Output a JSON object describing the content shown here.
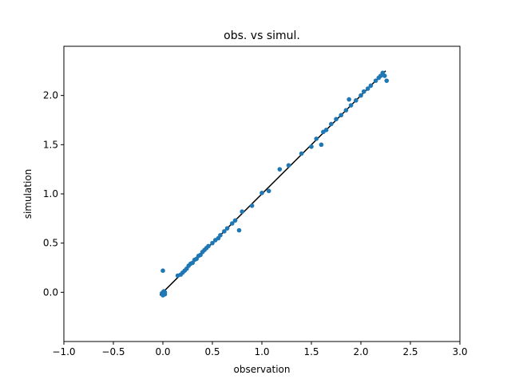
{
  "chart_data": {
    "type": "scatter",
    "title": "obs. vs simul.",
    "xlabel": "observation",
    "ylabel": "simulation",
    "xlim": [
      -1.0,
      3.0
    ],
    "ylim": [
      -0.5,
      2.5
    ],
    "xticks": [
      -1.0,
      -0.5,
      0.0,
      0.5,
      1.0,
      1.5,
      2.0,
      2.5,
      3.0
    ],
    "xtick_labels": [
      "−1.0",
      "−0.5",
      "0.0",
      "0.5",
      "1.0",
      "1.5",
      "2.0",
      "2.5",
      "3.0"
    ],
    "yticks": [
      0.0,
      0.5,
      1.0,
      1.5,
      2.0
    ],
    "ytick_labels": [
      "0.0",
      "0.5",
      "1.0",
      "1.5",
      "2.0"
    ],
    "grid": false,
    "series": [
      {
        "kind": "scatter",
        "color": "#1f77b4",
        "x": [
          -0.01,
          0.0,
          0.01,
          0.02,
          0.0,
          0.0,
          0.02,
          0.15,
          0.18,
          0.2,
          0.22,
          0.24,
          0.26,
          0.28,
          0.3,
          0.32,
          0.34,
          0.36,
          0.38,
          0.4,
          0.42,
          0.44,
          0.46,
          0.5,
          0.53,
          0.56,
          0.58,
          0.62,
          0.65,
          0.7,
          0.73,
          0.77,
          0.8,
          0.9,
          1.0,
          1.07,
          1.18,
          1.27,
          1.4,
          1.5,
          1.55,
          1.6,
          1.62,
          1.65,
          1.7,
          1.75,
          1.8,
          1.85,
          1.88,
          1.9,
          1.95,
          2.0,
          2.03,
          2.07,
          2.1,
          2.15,
          2.18,
          2.2,
          2.22,
          2.24,
          2.26
        ],
        "y": [
          -0.01,
          0.0,
          0.01,
          -0.02,
          -0.03,
          0.22,
          0.0,
          0.17,
          0.18,
          0.2,
          0.22,
          0.24,
          0.27,
          0.29,
          0.3,
          0.33,
          0.34,
          0.37,
          0.38,
          0.41,
          0.43,
          0.45,
          0.47,
          0.5,
          0.53,
          0.55,
          0.58,
          0.62,
          0.65,
          0.7,
          0.73,
          0.63,
          0.82,
          0.88,
          1.01,
          1.03,
          1.25,
          1.29,
          1.41,
          1.48,
          1.56,
          1.5,
          1.63,
          1.65,
          1.71,
          1.76,
          1.8,
          1.85,
          1.96,
          1.9,
          1.95,
          2.0,
          2.04,
          2.07,
          2.1,
          2.15,
          2.18,
          2.2,
          2.23,
          2.2,
          2.15
        ]
      },
      {
        "kind": "line",
        "color": "#000000",
        "x": [
          -0.03,
          2.25
        ],
        "y": [
          -0.03,
          2.25
        ]
      }
    ]
  }
}
